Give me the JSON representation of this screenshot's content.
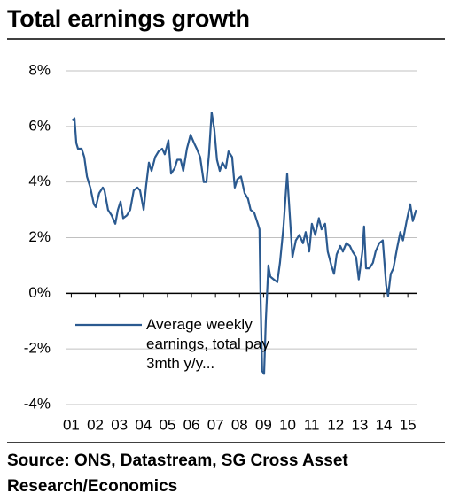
{
  "chart_data": {
    "type": "line",
    "title": "Total earnings growth",
    "source": "Source: ONS, Datastream, SG Cross Asset Research/Economics",
    "x": [
      1.06,
      1.13,
      1.21,
      1.28,
      1.43,
      1.54,
      1.65,
      1.79,
      1.94,
      2.02,
      2.16,
      2.31,
      2.38,
      2.53,
      2.68,
      2.83,
      2.94,
      3.05,
      3.16,
      3.31,
      3.45,
      3.6,
      3.75,
      3.86,
      4.01,
      4.12,
      4.23,
      4.34,
      4.49,
      4.63,
      4.78,
      4.89,
      5.04,
      5.15,
      5.3,
      5.41,
      5.55,
      5.66,
      5.81,
      5.96,
      6.11,
      6.22,
      6.36,
      6.51,
      6.62,
      6.73,
      6.84,
      6.95,
      7.06,
      7.18,
      7.29,
      7.43,
      7.54,
      7.69,
      7.8,
      7.91,
      8.06,
      8.21,
      8.35,
      8.46,
      8.61,
      8.76,
      8.83,
      8.87,
      8.94,
      9.02,
      9.09,
      9.2,
      9.28,
      9.42,
      9.57,
      9.68,
      9.83,
      9.98,
      10.09,
      10.2,
      10.34,
      10.49,
      10.64,
      10.75,
      10.9,
      11.01,
      11.15,
      11.3,
      11.41,
      11.56,
      11.67,
      11.82,
      11.93,
      12.04,
      12.19,
      12.3,
      12.44,
      12.59,
      12.7,
      12.85,
      12.96,
      13.11,
      13.18,
      13.26,
      13.4,
      13.55,
      13.66,
      13.81,
      13.96,
      14.1,
      14.18,
      14.29,
      14.4,
      14.55,
      14.69,
      14.8,
      14.95,
      15.1,
      15.21,
      15.35
    ],
    "series": [
      {
        "name": "Average weekly earnings, total pay 3mth y/y...",
        "color": "#2b5a90",
        "values": [
          6.2,
          6.3,
          5.4,
          5.2,
          5.2,
          4.9,
          4.2,
          3.8,
          3.2,
          3.1,
          3.6,
          3.8,
          3.7,
          3.0,
          2.8,
          2.5,
          3.0,
          3.3,
          2.7,
          2.8,
          3.0,
          3.7,
          3.8,
          3.7,
          3.0,
          3.9,
          4.7,
          4.4,
          4.9,
          5.1,
          5.2,
          5.0,
          5.5,
          4.3,
          4.5,
          4.8,
          4.8,
          4.4,
          5.2,
          5.7,
          5.4,
          5.2,
          4.9,
          4.0,
          4.0,
          5.0,
          6.5,
          5.9,
          4.8,
          4.4,
          4.7,
          4.5,
          5.1,
          4.9,
          3.8,
          4.1,
          4.2,
          3.6,
          3.4,
          3.0,
          2.9,
          2.5,
          2.3,
          0,
          -2.8,
          -2.9,
          -1.0,
          1.0,
          0.6,
          0.5,
          0.4,
          1.1,
          2.4,
          4.3,
          2.8,
          1.3,
          1.9,
          2.1,
          1.8,
          2.2,
          1.5,
          2.5,
          2.1,
          2.7,
          2.3,
          2.5,
          1.5,
          1.0,
          0.7,
          1.4,
          1.7,
          1.5,
          1.8,
          1.7,
          1.5,
          1.3,
          0.5,
          1.5,
          2.4,
          0.9,
          0.9,
          1.1,
          1.5,
          1.8,
          1.9,
          0.3,
          -0.1,
          0.7,
          0.9,
          1.6,
          2.2,
          1.9,
          2.6,
          3.2,
          2.6,
          3.0
        ]
      }
    ],
    "xlim": [
      0.8,
      15.4
    ],
    "xticks": [
      {
        "value": 1,
        "label": "01"
      },
      {
        "value": 2,
        "label": "02"
      },
      {
        "value": 3,
        "label": "03"
      },
      {
        "value": 4,
        "label": "04"
      },
      {
        "value": 5,
        "label": "05"
      },
      {
        "value": 6,
        "label": "06"
      },
      {
        "value": 7,
        "label": "07"
      },
      {
        "value": 8,
        "label": "08"
      },
      {
        "value": 9,
        "label": "09"
      },
      {
        "value": 10,
        "label": "10"
      },
      {
        "value": 11,
        "label": "11"
      },
      {
        "value": 12,
        "label": "12"
      },
      {
        "value": 13,
        "label": "13"
      },
      {
        "value": 14,
        "label": "14"
      },
      {
        "value": 15,
        "label": "15"
      }
    ],
    "ylim": [
      -4,
      8
    ],
    "yticks": [
      {
        "value": -4,
        "label": "-4%"
      },
      {
        "value": -2,
        "label": "-2%"
      },
      {
        "value": 0,
        "label": "0%"
      },
      {
        "value": 2,
        "label": "2%"
      },
      {
        "value": 4,
        "label": "4%"
      },
      {
        "value": 6,
        "label": "6%"
      },
      {
        "value": 8,
        "label": "8%"
      }
    ],
    "grid": true,
    "legend": "lower left"
  }
}
